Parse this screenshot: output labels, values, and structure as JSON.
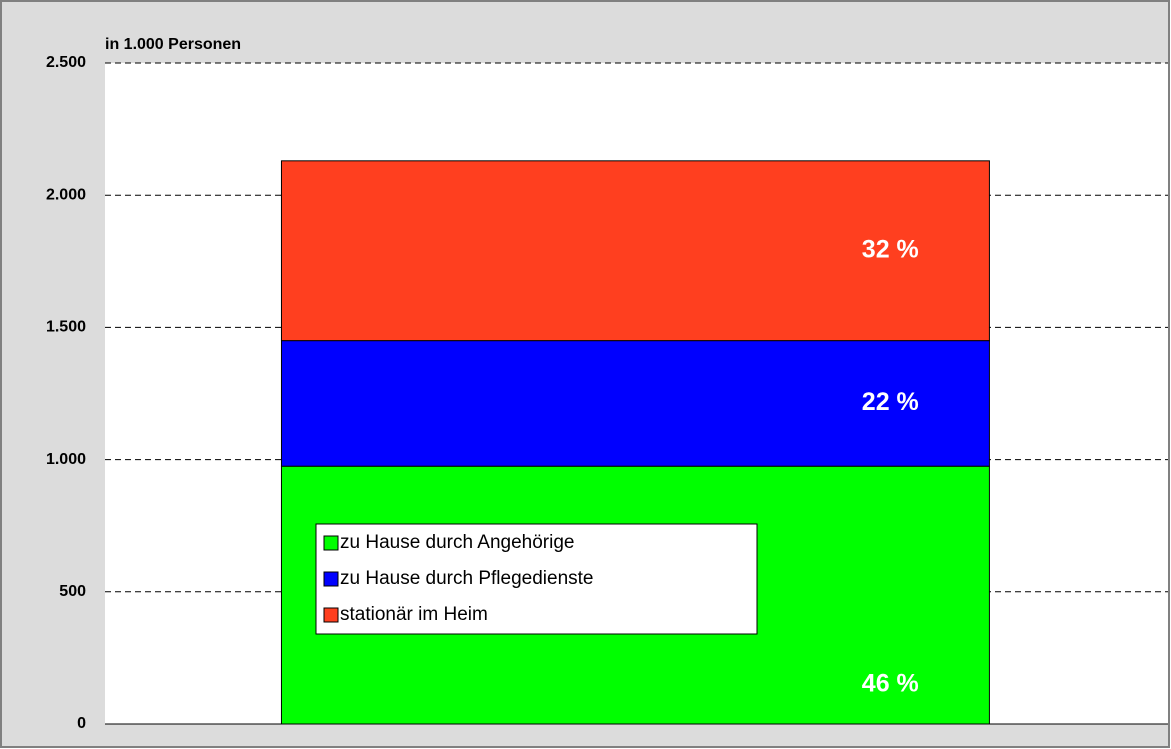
{
  "chart_data": {
    "type": "stacked_bar",
    "y_axis_label": "in 1.000 Personen",
    "categories": [
      null
    ],
    "series": [
      {
        "name": "zu Hause durch Angehörige",
        "color": "#00ff00",
        "values": [
          975
        ]
      },
      {
        "name": "zu Hause durch Pflegedienste",
        "color": "#0000ff",
        "values": [
          475
        ]
      },
      {
        "name": "stationär im Heim",
        "color": "#ff3f1f",
        "values": [
          680
        ]
      }
    ],
    "annotations": [
      {
        "text": "46 %",
        "series": 0
      },
      {
        "text": "22 %",
        "series": 1
      },
      {
        "text": "32 %",
        "series": 2
      }
    ],
    "ylim": [
      0,
      2500
    ],
    "yticks": [
      0,
      500,
      {
        "value": 1000,
        "label": "1.000"
      },
      {
        "value": 1500,
        "label": "1.500"
      },
      {
        "value": 2000,
        "label": "2.000"
      },
      {
        "value": 2500,
        "label": "2.500"
      }
    ],
    "grid": true,
    "legend": "lower left"
  }
}
